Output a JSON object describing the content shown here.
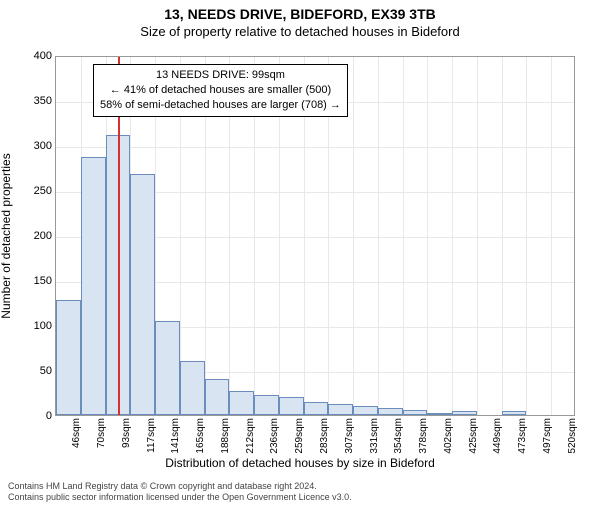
{
  "header": {
    "title": "13, NEEDS DRIVE, BIDEFORD, EX39 3TB",
    "subtitle": "Size of property relative to detached houses in Bideford"
  },
  "chart": {
    "type": "histogram",
    "y_axis_label": "Number of detached properties",
    "x_axis_label": "Distribution of detached houses by size in Bideford",
    "ylim": [
      0,
      400
    ],
    "ytick_step": 50,
    "x_categories": [
      "46sqm",
      "70sqm",
      "93sqm",
      "117sqm",
      "141sqm",
      "165sqm",
      "188sqm",
      "212sqm",
      "236sqm",
      "259sqm",
      "283sqm",
      "307sqm",
      "331sqm",
      "354sqm",
      "378sqm",
      "402sqm",
      "425sqm",
      "449sqm",
      "473sqm",
      "497sqm",
      "520sqm"
    ],
    "values": [
      128,
      287,
      311,
      268,
      105,
      60,
      40,
      27,
      22,
      20,
      15,
      12,
      10,
      8,
      6,
      2,
      4,
      0,
      5,
      0,
      0
    ],
    "bar_fill": "#d9e4f3",
    "bar_border": "#6a8dbb",
    "grid_color": "#e8e8e8",
    "background_color": "#ffffff",
    "marker_index": 2,
    "marker_color": "#d63030",
    "label_fontsize": 12,
    "tick_fontsize": 11
  },
  "annotation": {
    "line1": "13 NEEDS DRIVE: 99sqm",
    "line2": "← 41% of detached houses are smaller (500)",
    "line3": "58% of semi-detached houses are larger (708) →"
  },
  "footer": {
    "line1": "Contains HM Land Registry data © Crown copyright and database right 2024.",
    "line2": "Contains public sector information licensed under the Open Government Licence v3.0."
  }
}
